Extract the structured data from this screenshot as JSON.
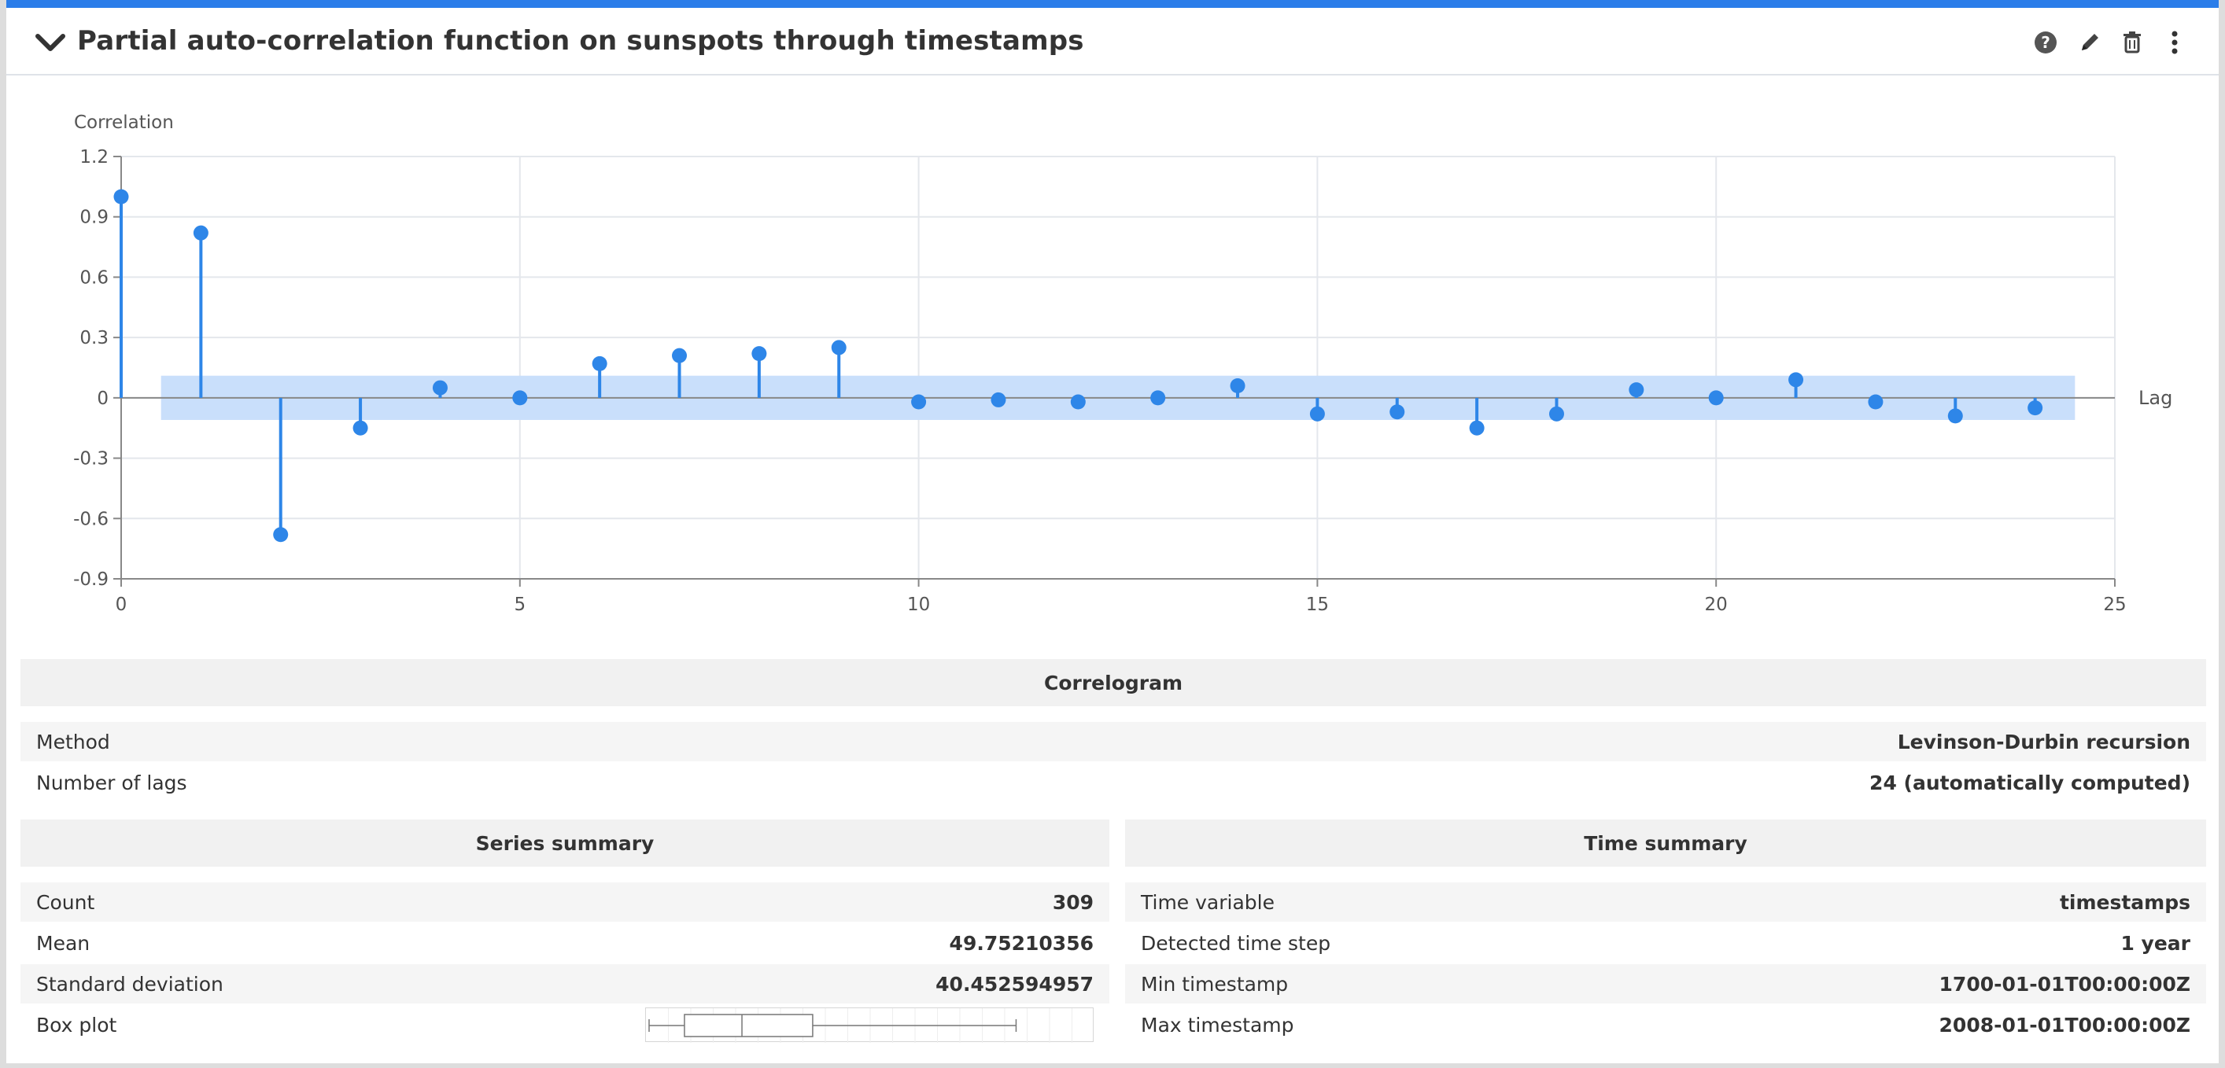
{
  "header": {
    "title": "Partial auto-correlation function on sunspots through timestamps"
  },
  "chart_data": {
    "type": "stem",
    "ylabel": "Correlation",
    "xlabel": "Lag",
    "xlim": [
      0,
      25
    ],
    "ylim": [
      -0.9,
      1.2
    ],
    "x_ticks": [
      "0",
      "5",
      "10",
      "15",
      "20",
      "25"
    ],
    "y_ticks": [
      "1.2",
      "0.9",
      "0.6",
      "0.3",
      "0",
      "-0.3",
      "-0.6",
      "-0.9"
    ],
    "confidence_band": [
      -0.11,
      0.11
    ],
    "grid": true,
    "color": "#2e86e8",
    "band_color": "#c9dffb",
    "x": [
      0,
      1,
      2,
      3,
      4,
      5,
      6,
      7,
      8,
      9,
      10,
      11,
      12,
      13,
      14,
      15,
      16,
      17,
      18,
      19,
      20,
      21,
      22,
      23,
      24
    ],
    "values": [
      1.0,
      0.82,
      -0.68,
      -0.15,
      0.05,
      0.0,
      0.17,
      0.21,
      0.22,
      0.25,
      -0.02,
      -0.01,
      -0.02,
      0.0,
      0.06,
      -0.08,
      -0.07,
      -0.15,
      -0.08,
      0.04,
      0.0,
      0.09,
      -0.02,
      -0.09,
      -0.05
    ]
  },
  "correlogram": {
    "title": "Correlogram",
    "rows": [
      {
        "label": "Method",
        "value": "Levinson-Durbin recursion"
      },
      {
        "label": "Number of lags",
        "value": "24 (automatically computed)"
      }
    ]
  },
  "series_summary": {
    "title": "Series summary",
    "rows": [
      {
        "label": "Count",
        "value": "309"
      },
      {
        "label": "Mean",
        "value": "49.75210356"
      },
      {
        "label": "Standard deviation",
        "value": "40.452594957"
      },
      {
        "label": "Box plot",
        "value": ""
      }
    ],
    "boxplot": {
      "min": 0.0,
      "q1": 0.08,
      "median": 0.21,
      "q3": 0.37,
      "max": 0.83
    }
  },
  "time_summary": {
    "title": "Time summary",
    "rows": [
      {
        "label": "Time variable",
        "value": "timestamps"
      },
      {
        "label": "Detected time step",
        "value": "1 year"
      },
      {
        "label": "Min timestamp",
        "value": "1700-01-01T00:00:00Z"
      },
      {
        "label": "Max timestamp",
        "value": "2008-01-01T00:00:00Z"
      }
    ]
  },
  "icons": [
    "chevron-down-icon",
    "help-icon",
    "edit-icon",
    "trash-icon",
    "more-vertical-icon"
  ]
}
